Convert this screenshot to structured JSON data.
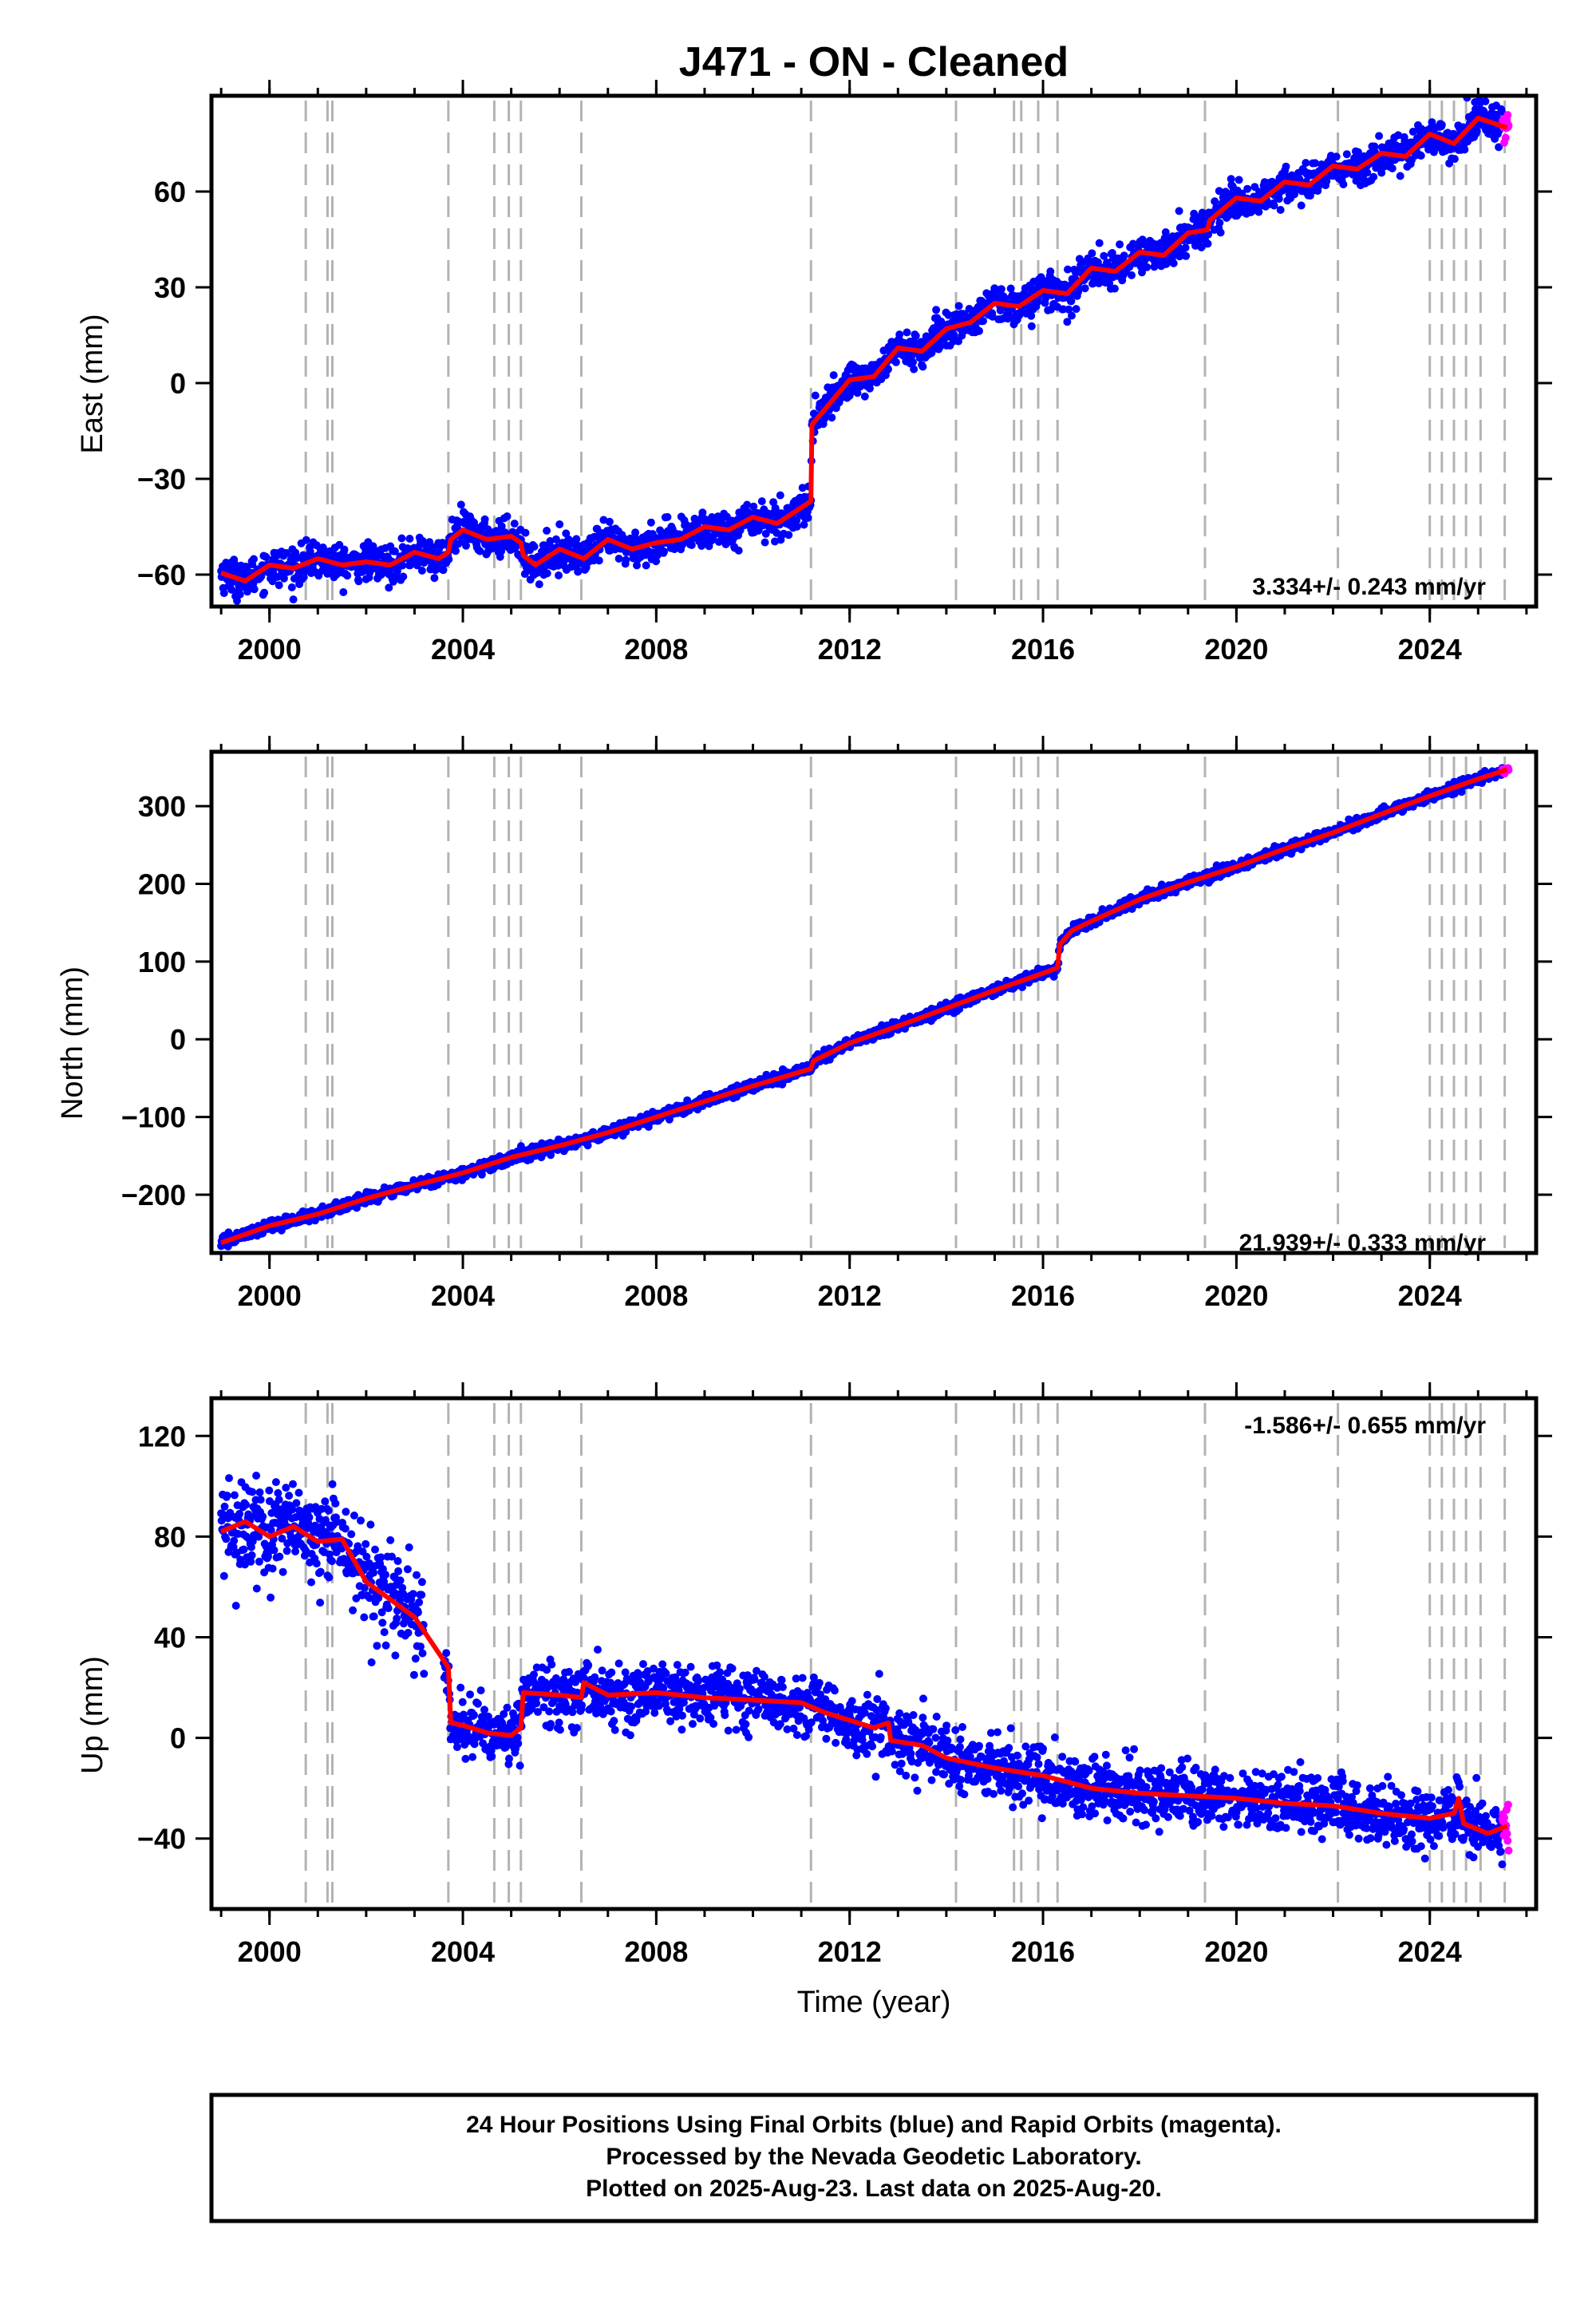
{
  "title": "J471  - ON - Cleaned",
  "footer": {
    "lines": [
      "24 Hour Positions Using Final Orbits (blue) and Rapid Orbits (magenta).",
      "Processed by the Nevada Geodetic Laboratory.",
      "Plotted on 2025-Aug-23. Last data on 2025-Aug-20."
    ]
  },
  "colors": {
    "final_orbits": "#0000ff",
    "rapid_orbits": "#ff00ff",
    "model_fit": "#ff0000",
    "event_lines": "#b3b3b3"
  },
  "chart_data": [
    {
      "type": "scatter",
      "component": "east",
      "ylabel": "East (mm)",
      "xlabel": "",
      "xlim": [
        1998.8,
        2026.2
      ],
      "ylim": [
        -70,
        90
      ],
      "xticks": [
        "2000",
        "2004",
        "2008",
        "2012",
        "2016",
        "2020",
        "2024"
      ],
      "yticks": [
        "-60",
        "-30",
        "0",
        "30",
        "60"
      ],
      "rate_label": "3.334+/- 0.243 mm/yr",
      "rate_position": "bottom-right",
      "event_lines_x": [
        2000.75,
        2001.2,
        2001.3,
        2003.7,
        2004.65,
        2004.95,
        2005.2,
        2006.45,
        2011.2,
        2014.2,
        2015.4,
        2015.55,
        2015.9,
        2016.3,
        2019.35,
        2022.1,
        2024.0,
        2024.25,
        2024.5,
        2024.75,
        2025.05,
        2025.55
      ],
      "model_fit_series": [
        {
          "x": 1999.0,
          "y": -59.5
        },
        {
          "x": 1999.5,
          "y": -62
        },
        {
          "x": 2000.0,
          "y": -57
        },
        {
          "x": 2000.5,
          "y": -58
        },
        {
          "x": 2001.0,
          "y": -55
        },
        {
          "x": 2001.5,
          "y": -57
        },
        {
          "x": 2002.0,
          "y": -56
        },
        {
          "x": 2002.5,
          "y": -57
        },
        {
          "x": 2003.0,
          "y": -53
        },
        {
          "x": 2003.5,
          "y": -55
        },
        {
          "x": 2003.7,
          "y": -53
        },
        {
          "x": 2003.75,
          "y": -49
        },
        {
          "x": 2004.0,
          "y": -46
        },
        {
          "x": 2004.5,
          "y": -49
        },
        {
          "x": 2005.0,
          "y": -48
        },
        {
          "x": 2005.2,
          "y": -50
        },
        {
          "x": 2005.25,
          "y": -54
        },
        {
          "x": 2005.5,
          "y": -57
        },
        {
          "x": 2006.0,
          "y": -52
        },
        {
          "x": 2006.5,
          "y": -55
        },
        {
          "x": 2007.0,
          "y": -49
        },
        {
          "x": 2007.5,
          "y": -52
        },
        {
          "x": 2008.0,
          "y": -50
        },
        {
          "x": 2008.5,
          "y": -49
        },
        {
          "x": 2009.0,
          "y": -45
        },
        {
          "x": 2009.5,
          "y": -46
        },
        {
          "x": 2010.0,
          "y": -42
        },
        {
          "x": 2010.5,
          "y": -44
        },
        {
          "x": 2011.0,
          "y": -39
        },
        {
          "x": 2011.2,
          "y": -37
        },
        {
          "x": 2011.22,
          "y": -13
        },
        {
          "x": 2011.5,
          "y": -8
        },
        {
          "x": 2012.0,
          "y": 1
        },
        {
          "x": 2012.5,
          "y": 2
        },
        {
          "x": 2013.0,
          "y": 11
        },
        {
          "x": 2013.5,
          "y": 10
        },
        {
          "x": 2014.0,
          "y": 17
        },
        {
          "x": 2014.5,
          "y": 19
        },
        {
          "x": 2015.0,
          "y": 25
        },
        {
          "x": 2015.5,
          "y": 24
        },
        {
          "x": 2016.0,
          "y": 29
        },
        {
          "x": 2016.5,
          "y": 28
        },
        {
          "x": 2017.0,
          "y": 36
        },
        {
          "x": 2017.5,
          "y": 35
        },
        {
          "x": 2018.0,
          "y": 41
        },
        {
          "x": 2018.5,
          "y": 40
        },
        {
          "x": 2019.0,
          "y": 47
        },
        {
          "x": 2019.4,
          "y": 48
        },
        {
          "x": 2019.45,
          "y": 51
        },
        {
          "x": 2020.0,
          "y": 58
        },
        {
          "x": 2020.5,
          "y": 57
        },
        {
          "x": 2021.0,
          "y": 63
        },
        {
          "x": 2021.5,
          "y": 62
        },
        {
          "x": 2022.0,
          "y": 68
        },
        {
          "x": 2022.5,
          "y": 67
        },
        {
          "x": 2023.0,
          "y": 72
        },
        {
          "x": 2023.5,
          "y": 71
        },
        {
          "x": 2024.0,
          "y": 78
        },
        {
          "x": 2024.5,
          "y": 75
        },
        {
          "x": 2025.0,
          "y": 83
        },
        {
          "x": 2025.6,
          "y": 80
        }
      ]
    },
    {
      "type": "scatter",
      "component": "north",
      "ylabel": "North (mm)",
      "xlabel": "",
      "xlim": [
        1998.8,
        2026.2
      ],
      "ylim": [
        -275,
        370
      ],
      "xticks": [
        "2000",
        "2004",
        "2008",
        "2012",
        "2016",
        "2020",
        "2024"
      ],
      "yticks": [
        "-200",
        "-100",
        "0",
        "100",
        "200",
        "300"
      ],
      "rate_label": "21.939+/- 0.333 mm/yr",
      "rate_position": "bottom-right",
      "event_lines_x": [
        2000.75,
        2001.2,
        2001.3,
        2003.7,
        2004.65,
        2004.95,
        2005.2,
        2006.45,
        2011.2,
        2014.2,
        2015.4,
        2015.55,
        2015.9,
        2016.3,
        2019.35,
        2022.1,
        2024.0,
        2024.25,
        2024.5,
        2024.75,
        2025.05,
        2025.55
      ],
      "model_fit_series": [
        {
          "x": 1999.0,
          "y": -262
        },
        {
          "x": 2000.0,
          "y": -240
        },
        {
          "x": 2001.0,
          "y": -225
        },
        {
          "x": 2002.0,
          "y": -205
        },
        {
          "x": 2003.0,
          "y": -188
        },
        {
          "x": 2004.0,
          "y": -172
        },
        {
          "x": 2005.0,
          "y": -152
        },
        {
          "x": 2006.0,
          "y": -137
        },
        {
          "x": 2007.0,
          "y": -120
        },
        {
          "x": 2008.0,
          "y": -100
        },
        {
          "x": 2009.0,
          "y": -80
        },
        {
          "x": 2010.0,
          "y": -60
        },
        {
          "x": 2011.2,
          "y": -38
        },
        {
          "x": 2011.25,
          "y": -28
        },
        {
          "x": 2012.0,
          "y": -5
        },
        {
          "x": 2013.0,
          "y": 17
        },
        {
          "x": 2014.0,
          "y": 40
        },
        {
          "x": 2015.0,
          "y": 63
        },
        {
          "x": 2016.0,
          "y": 85
        },
        {
          "x": 2016.3,
          "y": 92
        },
        {
          "x": 2016.35,
          "y": 122
        },
        {
          "x": 2016.6,
          "y": 140
        },
        {
          "x": 2017.0,
          "y": 152
        },
        {
          "x": 2018.0,
          "y": 180
        },
        {
          "x": 2019.0,
          "y": 202
        },
        {
          "x": 2020.0,
          "y": 222
        },
        {
          "x": 2021.0,
          "y": 245
        },
        {
          "x": 2022.0,
          "y": 266
        },
        {
          "x": 2023.0,
          "y": 290
        },
        {
          "x": 2024.0,
          "y": 313
        },
        {
          "x": 2025.0,
          "y": 335
        },
        {
          "x": 2025.6,
          "y": 347
        }
      ]
    },
    {
      "type": "scatter",
      "component": "up",
      "ylabel": "Up (mm)",
      "xlabel": "Time (year)",
      "xlim": [
        1998.8,
        2026.2
      ],
      "ylim": [
        -68,
        135
      ],
      "xticks": [
        "2000",
        "2004",
        "2008",
        "2012",
        "2016",
        "2020",
        "2024"
      ],
      "yticks": [
        "-40",
        "0",
        "40",
        "80",
        "120"
      ],
      "rate_label": "-1.586+/- 0.655 mm/yr",
      "rate_position": "top-right",
      "event_lines_x": [
        2000.75,
        2001.2,
        2001.3,
        2003.7,
        2004.65,
        2004.95,
        2005.2,
        2006.45,
        2011.2,
        2014.2,
        2015.4,
        2015.55,
        2015.9,
        2016.3,
        2019.35,
        2022.1,
        2024.0,
        2024.25,
        2024.5,
        2024.75,
        2025.05,
        2025.55
      ],
      "model_fit_series": [
        {
          "x": 1999.0,
          "y": 82
        },
        {
          "x": 1999.5,
          "y": 86
        },
        {
          "x": 2000.0,
          "y": 80
        },
        {
          "x": 2000.5,
          "y": 84
        },
        {
          "x": 2001.0,
          "y": 78
        },
        {
          "x": 2001.5,
          "y": 79
        },
        {
          "x": 2002.0,
          "y": 62
        },
        {
          "x": 2002.5,
          "y": 55
        },
        {
          "x": 2003.0,
          "y": 48
        },
        {
          "x": 2003.7,
          "y": 28
        },
        {
          "x": 2003.75,
          "y": 6
        },
        {
          "x": 2004.0,
          "y": 5
        },
        {
          "x": 2004.5,
          "y": 2
        },
        {
          "x": 2005.0,
          "y": 1
        },
        {
          "x": 2005.2,
          "y": 4
        },
        {
          "x": 2005.25,
          "y": 18
        },
        {
          "x": 2006.0,
          "y": 17
        },
        {
          "x": 2006.45,
          "y": 16
        },
        {
          "x": 2006.5,
          "y": 22
        },
        {
          "x": 2007.0,
          "y": 17
        },
        {
          "x": 2008.0,
          "y": 18
        },
        {
          "x": 2009.0,
          "y": 16
        },
        {
          "x": 2010.0,
          "y": 15
        },
        {
          "x": 2011.0,
          "y": 14
        },
        {
          "x": 2011.5,
          "y": 10
        },
        {
          "x": 2012.0,
          "y": 7
        },
        {
          "x": 2012.5,
          "y": 4
        },
        {
          "x": 2012.8,
          "y": 6
        },
        {
          "x": 2012.85,
          "y": -1
        },
        {
          "x": 2013.5,
          "y": -3
        },
        {
          "x": 2014.0,
          "y": -8
        },
        {
          "x": 2015.0,
          "y": -12
        },
        {
          "x": 2016.0,
          "y": -15
        },
        {
          "x": 2017.0,
          "y": -20
        },
        {
          "x": 2018.0,
          "y": -22
        },
        {
          "x": 2019.0,
          "y": -23
        },
        {
          "x": 2020.0,
          "y": -24
        },
        {
          "x": 2021.0,
          "y": -26
        },
        {
          "x": 2022.0,
          "y": -27
        },
        {
          "x": 2023.0,
          "y": -30
        },
        {
          "x": 2024.0,
          "y": -32
        },
        {
          "x": 2024.5,
          "y": -30
        },
        {
          "x": 2024.6,
          "y": -24
        },
        {
          "x": 2024.7,
          "y": -34
        },
        {
          "x": 2025.2,
          "y": -38
        },
        {
          "x": 2025.6,
          "y": -35
        }
      ]
    }
  ]
}
